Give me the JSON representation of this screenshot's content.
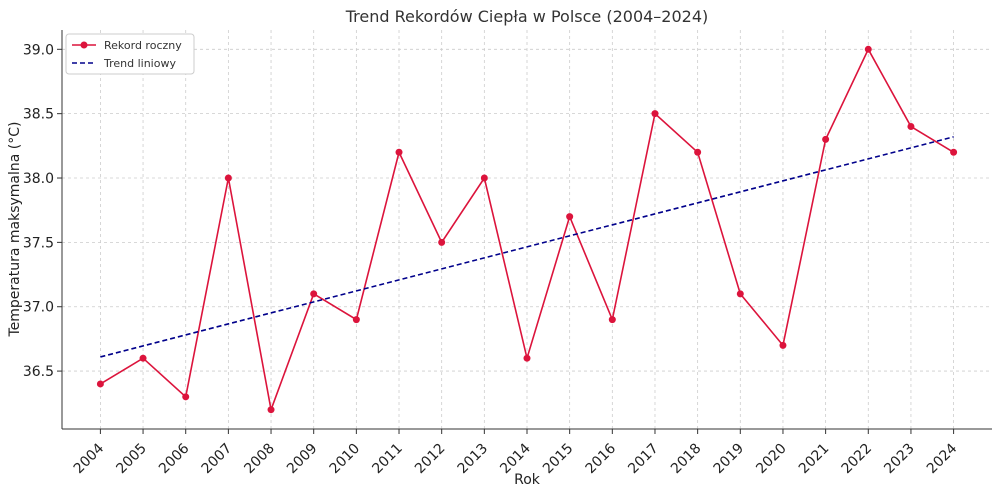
{
  "chart_data": {
    "type": "line",
    "title": "Trend Rekordów Ciepła w Polsce (2004–2024)",
    "xlabel": "Rok",
    "ylabel": "Temperatura maksymalna (°C)",
    "x": [
      "2004",
      "2005",
      "2006",
      "2007",
      "2008",
      "2009",
      "2010",
      "2011",
      "2012",
      "2013",
      "2014",
      "2015",
      "2016",
      "2017",
      "2018",
      "2019",
      "2020",
      "2021",
      "2022",
      "2023",
      "2024"
    ],
    "yticks": [
      "36.5",
      "37.0",
      "37.5",
      "38.0",
      "38.5",
      "39.0"
    ],
    "ylim": [
      36.05,
      39.15
    ],
    "grid": true,
    "legend_position": "top-left",
    "series": [
      {
        "name": "Rekord roczny",
        "color": "#dc143c",
        "style": "solid-with-markers",
        "values": [
          36.4,
          36.6,
          36.3,
          38.0,
          36.2,
          37.1,
          36.9,
          38.2,
          37.5,
          38.0,
          36.6,
          37.7,
          36.9,
          38.5,
          38.2,
          37.1,
          36.7,
          38.3,
          39.0,
          38.4,
          38.2
        ]
      },
      {
        "name": "Trend liniowy",
        "color": "#00008b",
        "style": "dashed",
        "values": [
          36.61,
          38.32
        ],
        "x": [
          "2004",
          "2024"
        ]
      }
    ]
  }
}
